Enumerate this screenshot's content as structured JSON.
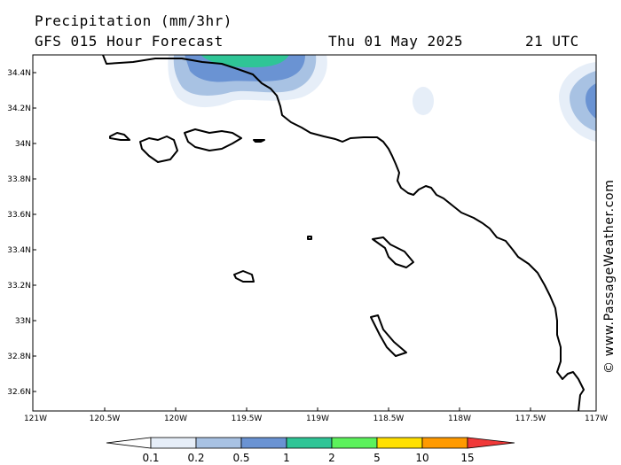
{
  "header": {
    "title": "Precipitation (mm/3hr)",
    "subtitle": "GFS 015 Hour Forecast",
    "date": "Thu 01 May 2025",
    "time": "21 UTC"
  },
  "map": {
    "lat_labels": [
      "34.4N",
      "34.2N",
      "34N",
      "33.8N",
      "33.6N",
      "33.4N",
      "33.2N",
      "33N",
      "32.8N",
      "32.6N"
    ],
    "lon_labels": [
      "121W",
      "120.5W",
      "120W",
      "119.5W",
      "119W",
      "118.5W",
      "118W",
      "117.5W",
      "117W"
    ],
    "colors": {
      "land_outline": "#000000"
    }
  },
  "legend": {
    "ticks": [
      "0.1",
      "0.2",
      "0.5",
      "1",
      "2",
      "5",
      "10",
      "15"
    ],
    "colors": [
      "#ffffff",
      "#e6eef8",
      "#a8c2e3",
      "#6a93d3",
      "#2fc596",
      "#5cf25c",
      "#ffe000",
      "#ff9a00",
      "#f03838"
    ]
  },
  "credit": "© www.PassageWeather.com"
}
